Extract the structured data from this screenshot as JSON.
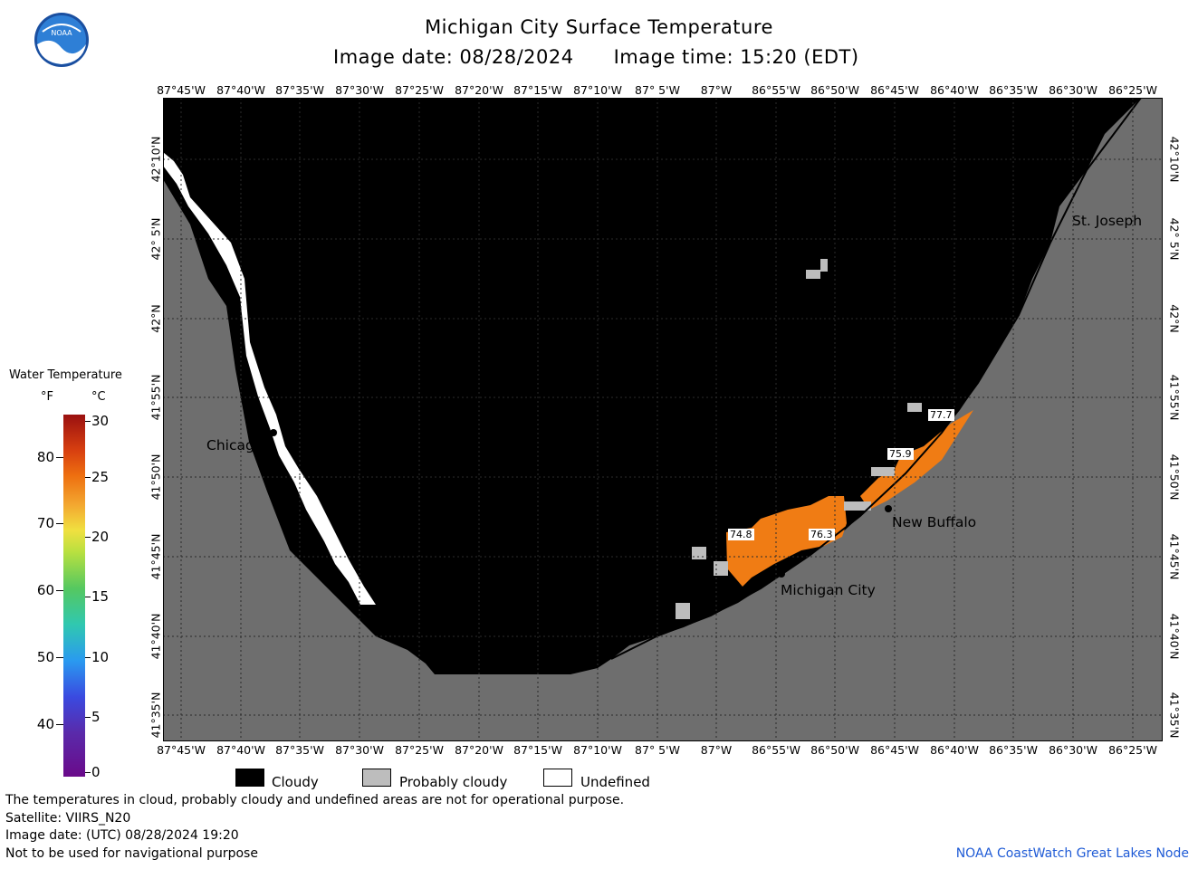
{
  "header": {
    "title": "Michigan City Surface Temperature",
    "image_date": "Image date: 08/28/2024",
    "image_time": "Image time: 15:20 (EDT)",
    "logo_text": "NOAA"
  },
  "map": {
    "lon_ticks": [
      "87°45'W",
      "87°40'W",
      "87°35'W",
      "87°30'W",
      "87°25'W",
      "87°20'W",
      "87°15'W",
      "87°10'W",
      "87° 5'W",
      "87°W",
      "86°55'W",
      "86°50'W",
      "86°45'W",
      "86°40'W",
      "86°35'W",
      "86°30'W",
      "86°25'W"
    ],
    "lat_ticks": [
      "42°10'N",
      "42° 5'N",
      "42°N",
      "41°55'N",
      "41°50'N",
      "41°45'N",
      "41°40'N",
      "41°35'N"
    ],
    "cities": [
      {
        "name": "Chicago"
      },
      {
        "name": "St. Joseph"
      },
      {
        "name": "New Buffalo"
      },
      {
        "name": "Michigan City"
      }
    ],
    "temperature_labels": [
      "77.7",
      "75.9",
      "74.8",
      "76.3"
    ],
    "colors": {
      "land": "#6e6e6e",
      "cloudy": "#000000",
      "probably_cloudy": "#bdbdbd",
      "undefined": "#ffffff",
      "warm_water": "#f07c14"
    }
  },
  "legend": {
    "title": "Water Temperature",
    "unit_f": "°F",
    "unit_c": "°C",
    "f_ticks": [
      "80",
      "70",
      "60",
      "50",
      "40"
    ],
    "c_ticks": [
      "30",
      "25",
      "20",
      "15",
      "10",
      "5",
      "0"
    ],
    "keys": [
      "Cloudy",
      "Probably cloudy",
      "Undefined"
    ]
  },
  "footer": {
    "line1": "The temperatures in cloud, probably cloudy and undefined areas are not for operational purpose.",
    "line2": "Satellite: VIIRS_N20",
    "line3": "Image date: (UTC) 08/28/2024  19:20",
    "line4": "Not to be used for navigational purpose",
    "credit": "NOAA CoastWatch Great Lakes Node"
  }
}
